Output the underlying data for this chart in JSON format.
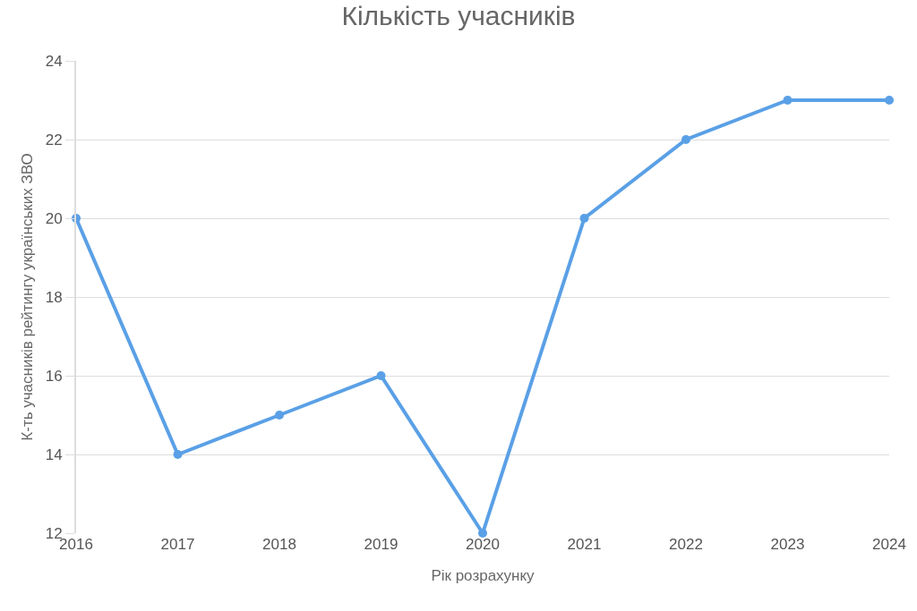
{
  "chart_data": {
    "type": "line",
    "title": "Кількість учасників",
    "xlabel": "Рік розрахунку",
    "ylabel": "К-ть учасників рейтингу українських ЗВО",
    "x": [
      2016,
      2017,
      2018,
      2019,
      2020,
      2021,
      2022,
      2023,
      2024
    ],
    "series": [
      {
        "color": "#5aa0e6",
        "values": [
          20,
          14,
          15,
          16,
          12,
          20,
          22,
          23,
          23
        ]
      }
    ],
    "xlim": [
      2016,
      2024
    ],
    "xticks": [
      2016,
      2017,
      2018,
      2019,
      2020,
      2021,
      2022,
      2023,
      2024
    ],
    "ylim": [
      12,
      24
    ],
    "yticks": [
      12,
      14,
      16,
      18,
      20,
      22,
      24
    ],
    "grid": "y",
    "marker": "circle",
    "line_style": "solid",
    "legend": false
  }
}
